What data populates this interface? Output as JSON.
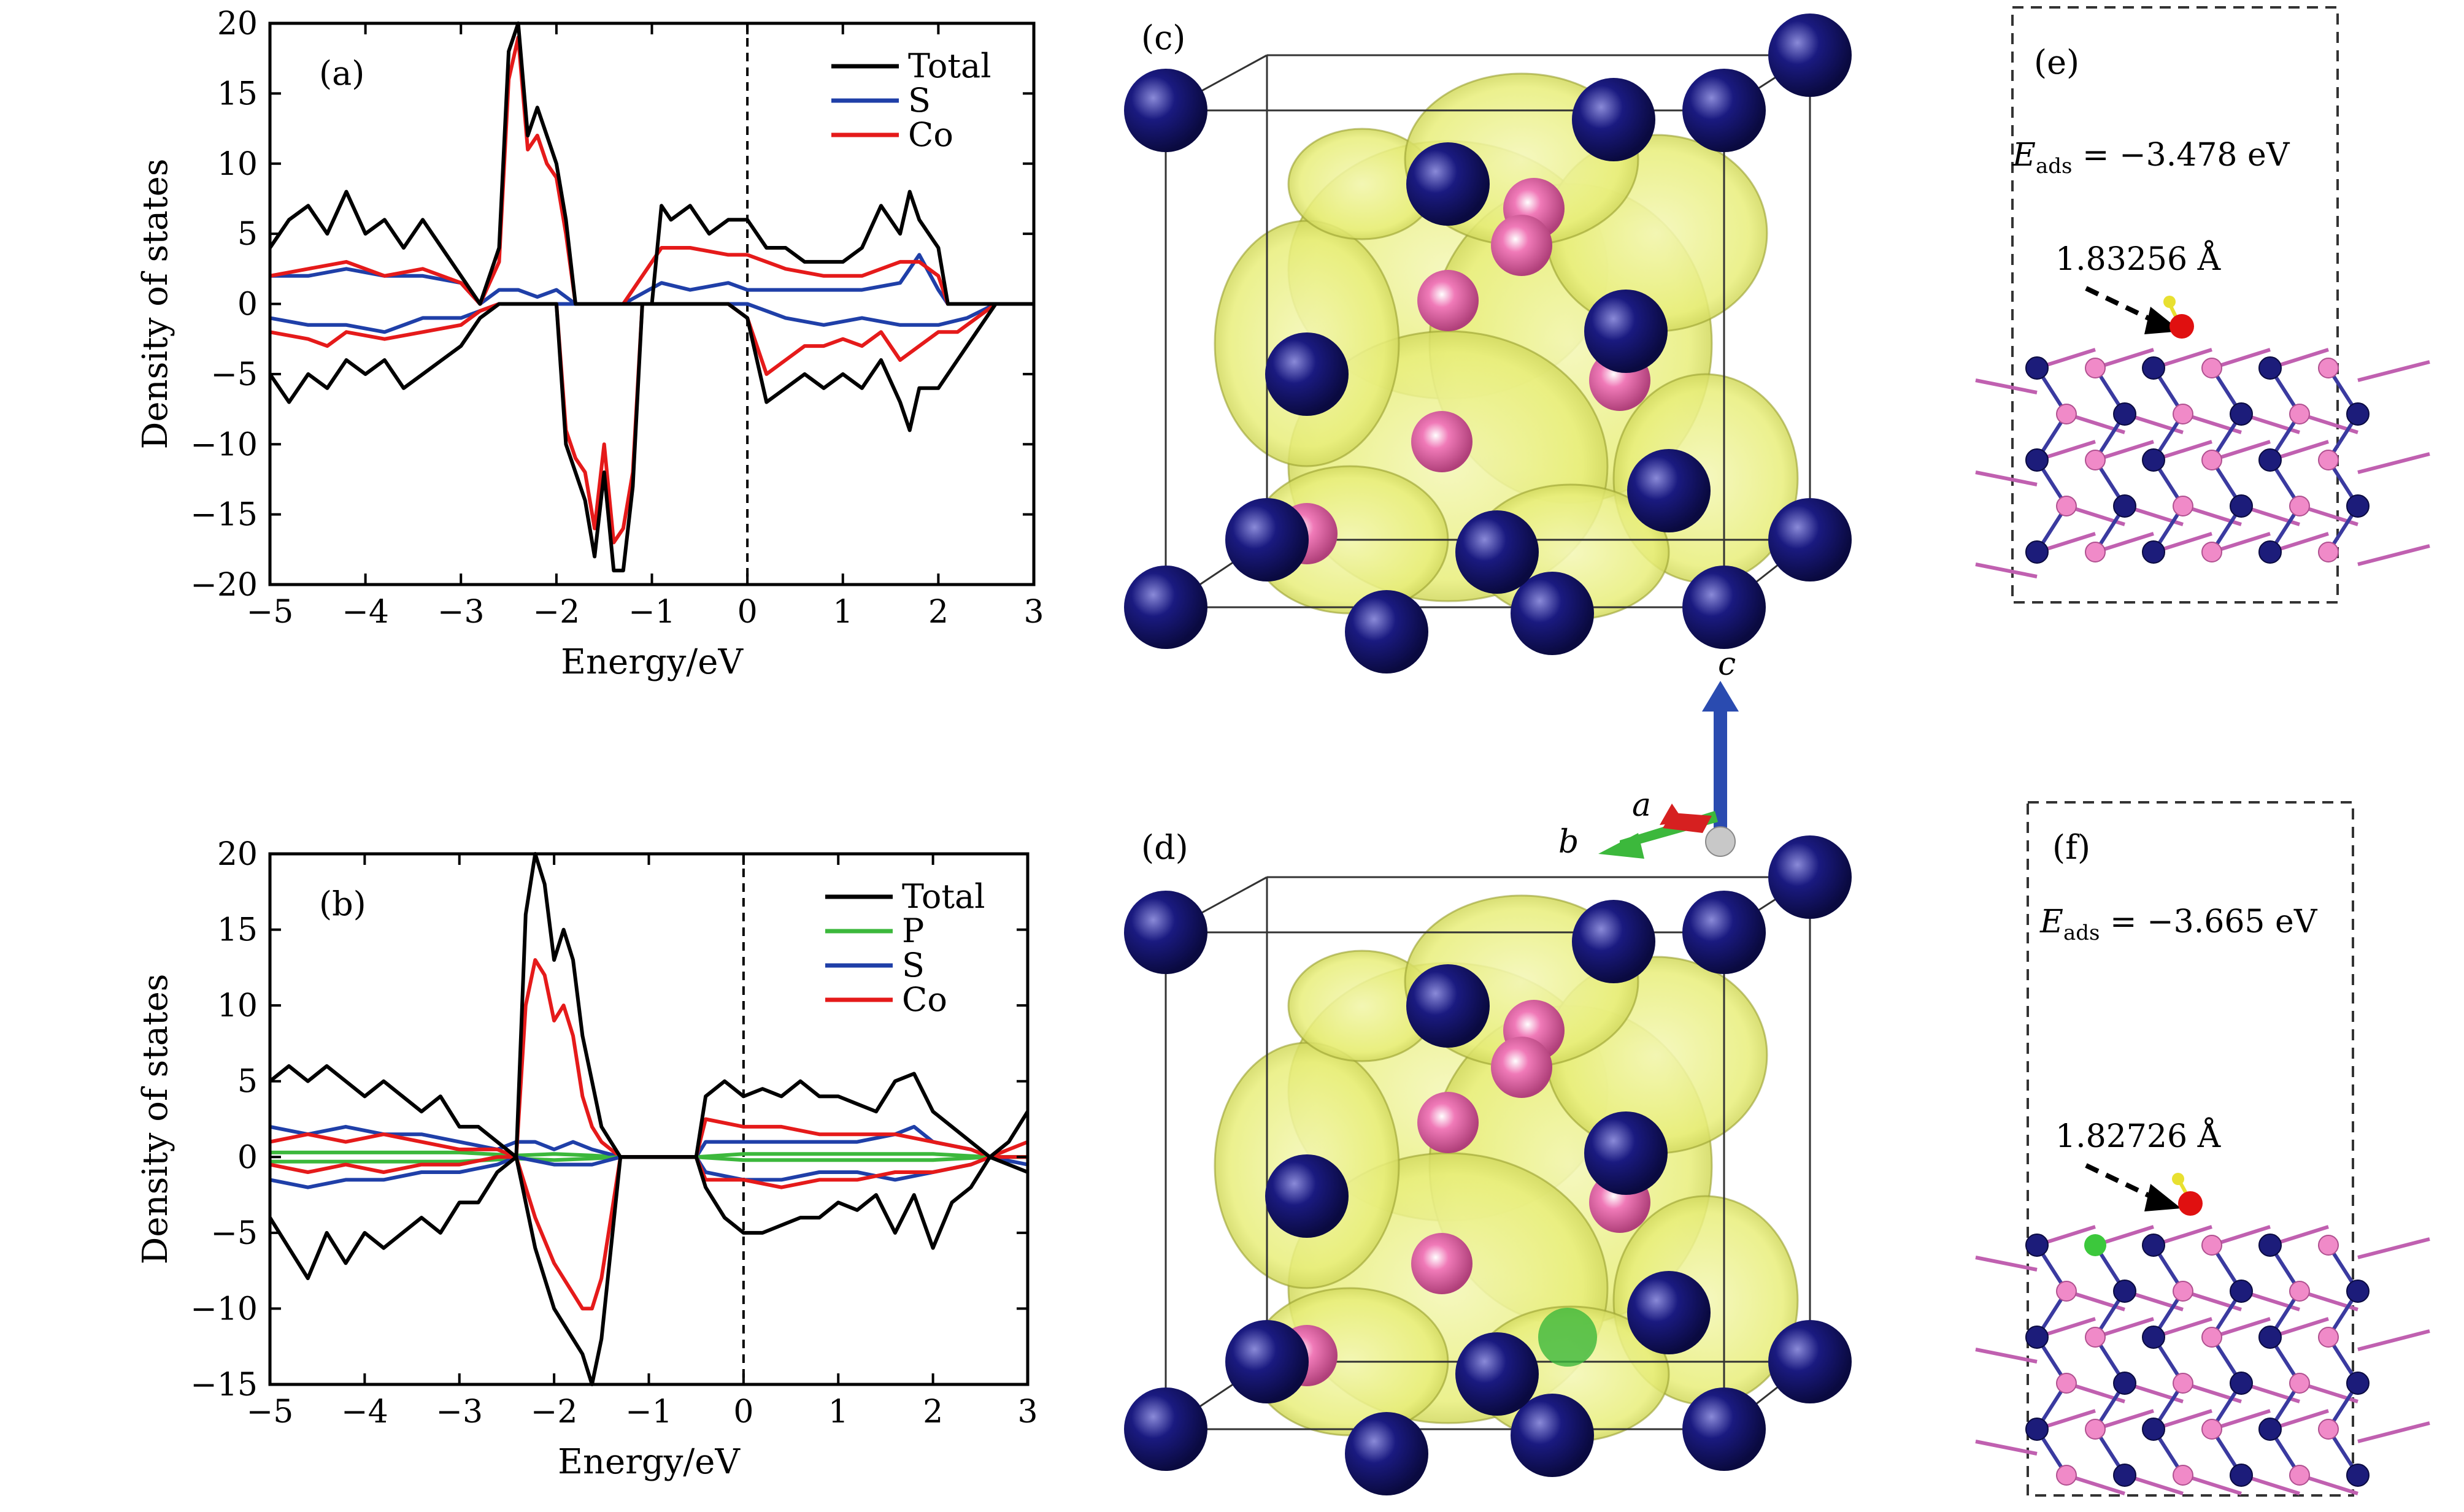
{
  "chart_data": [
    {
      "type": "line",
      "panel_label": "(a)",
      "xlabel": "Energy/eV",
      "ylabel": "Density of states",
      "xlim": [
        -5,
        3
      ],
      "ylim": [
        -20,
        20
      ],
      "xticks": [
        -5,
        -4,
        -3,
        -2,
        -1,
        0,
        1,
        2,
        3
      ],
      "yticks": [
        -20,
        -15,
        -10,
        -5,
        0,
        5,
        10,
        15,
        20
      ],
      "fermi_level": 0,
      "legend": [
        "Total",
        "S",
        "Co"
      ],
      "legend_position": "top-right",
      "colors": {
        "Total": "#000000",
        "S": "#1f3fa8",
        "Co": "#e51a1a"
      },
      "series": [
        {
          "name": "Total",
          "spin": "up",
          "x": [
            -5,
            -4.8,
            -4.6,
            -4.4,
            -4.2,
            -4,
            -3.8,
            -3.6,
            -3.4,
            -3.2,
            -3,
            -2.8,
            -2.6,
            -2.5,
            -2.4,
            -2.3,
            -2.2,
            -2.1,
            -2,
            -1.9,
            -1.8,
            -1.3,
            -1.2,
            -1.1,
            -1,
            -0.9,
            -0.8,
            -0.6,
            -0.4,
            -0.2,
            0,
            0.2,
            0.4,
            0.6,
            0.8,
            1,
            1.2,
            1.4,
            1.6,
            1.7,
            1.8,
            2,
            2.1,
            2.4,
            3
          ],
          "y": [
            4,
            6,
            7,
            5,
            8,
            5,
            6,
            4,
            6,
            4,
            2,
            0,
            4,
            18,
            20,
            12,
            14,
            12,
            10,
            6,
            0,
            0,
            0,
            0,
            0,
            7,
            6,
            7,
            5,
            6,
            6,
            4,
            4,
            3,
            3,
            3,
            4,
            7,
            5,
            8,
            6,
            4,
            0,
            0,
            0
          ]
        },
        {
          "name": "S",
          "spin": "up",
          "x": [
            -5,
            -4.6,
            -4.2,
            -3.8,
            -3.4,
            -3,
            -2.8,
            -2.6,
            -2.4,
            -2.2,
            -2,
            -1.8,
            -1.3,
            -0.9,
            -0.6,
            -0.2,
            0,
            0.4,
            0.8,
            1.2,
            1.6,
            1.8,
            2,
            2.1,
            3
          ],
          "y": [
            2,
            2,
            2.5,
            2,
            2,
            1.5,
            0,
            1,
            1,
            0.5,
            1,
            0,
            0,
            1.5,
            1,
            1.5,
            1,
            1,
            1,
            1,
            1.5,
            3.5,
            1,
            0,
            0
          ]
        },
        {
          "name": "Co",
          "spin": "up",
          "x": [
            -5,
            -4.6,
            -4.2,
            -3.8,
            -3.4,
            -3,
            -2.8,
            -2.6,
            -2.5,
            -2.4,
            -2.3,
            -2.2,
            -2.1,
            -2,
            -1.9,
            -1.8,
            -1.3,
            -0.9,
            -0.6,
            -0.2,
            0,
            0.4,
            0.8,
            1.2,
            1.6,
            1.8,
            2,
            2.1,
            3
          ],
          "y": [
            2,
            2.5,
            3,
            2,
            2.5,
            1.5,
            0,
            3,
            16,
            19,
            11,
            12,
            10,
            9,
            5,
            0,
            0,
            4,
            4,
            3.5,
            3.5,
            2.5,
            2,
            2,
            3,
            3,
            2,
            0,
            0
          ]
        },
        {
          "name": "Total",
          "spin": "down",
          "x": [
            -5,
            -4.8,
            -4.6,
            -4.4,
            -4.2,
            -4,
            -3.8,
            -3.6,
            -3.4,
            -3.2,
            -3,
            -2.8,
            -2.6,
            -2,
            -1.9,
            -1.8,
            -1.7,
            -1.6,
            -1.5,
            -1.4,
            -1.3,
            -1.2,
            -1.1,
            -0.2,
            0,
            0.2,
            0.4,
            0.6,
            0.8,
            1,
            1.2,
            1.4,
            1.6,
            1.7,
            1.8,
            2,
            2.2,
            2.4,
            2.6,
            3
          ],
          "y": [
            -5,
            -7,
            -5,
            -6,
            -4,
            -5,
            -4,
            -6,
            -5,
            -4,
            -3,
            -1,
            0,
            0,
            -10,
            -12,
            -14,
            -18,
            -12,
            -19,
            -19,
            -13,
            0,
            0,
            -1,
            -7,
            -6,
            -5,
            -6,
            -5,
            -6,
            -4,
            -7,
            -9,
            -6,
            -6,
            -4,
            -2,
            0,
            0
          ]
        },
        {
          "name": "S",
          "spin": "down",
          "x": [
            -5,
            -4.6,
            -4.2,
            -3.8,
            -3.4,
            -3,
            -2.8,
            -2.6,
            -0.2,
            0,
            0.4,
            0.8,
            1.2,
            1.6,
            2,
            2.3,
            2.6,
            3
          ],
          "y": [
            -1,
            -1.5,
            -1.5,
            -2,
            -1,
            -1,
            -0.5,
            0,
            0,
            0,
            -1,
            -1.5,
            -1,
            -1.5,
            -1.5,
            -1,
            0,
            0
          ]
        },
        {
          "name": "Co",
          "spin": "down",
          "x": [
            -5,
            -4.6,
            -4.4,
            -4.2,
            -3.8,
            -3.4,
            -3,
            -2.8,
            -2.6,
            -2,
            -1.9,
            -1.8,
            -1.7,
            -1.6,
            -1.5,
            -1.4,
            -1.3,
            -1.2,
            -1.1,
            -0.2,
            0,
            0.2,
            0.4,
            0.6,
            0.8,
            1,
            1.2,
            1.4,
            1.6,
            1.8,
            2,
            2.2,
            2.6,
            3
          ],
          "y": [
            -2,
            -2.5,
            -3,
            -2,
            -2.5,
            -2,
            -1.5,
            -0.5,
            0,
            0,
            -9,
            -11,
            -12,
            -16,
            -10,
            -17,
            -16,
            -12,
            0,
            0,
            -1,
            -5,
            -4,
            -3,
            -3,
            -2.5,
            -3,
            -2,
            -4,
            -3,
            -2,
            -2,
            0,
            0
          ]
        }
      ]
    },
    {
      "type": "line",
      "panel_label": "(b)",
      "xlabel": "Energy/eV",
      "ylabel": "Density of states",
      "xlim": [
        -5,
        3
      ],
      "ylim": [
        -15,
        20
      ],
      "xticks": [
        -5,
        -4,
        -3,
        -2,
        -1,
        0,
        1,
        2,
        3
      ],
      "yticks": [
        -15,
        -10,
        -5,
        0,
        5,
        10,
        15,
        20
      ],
      "fermi_level": 0,
      "legend": [
        "Total",
        "P",
        "S",
        "Co"
      ],
      "legend_position": "top-right",
      "colors": {
        "Total": "#000000",
        "P": "#3cb83c",
        "S": "#1f3fa8",
        "Co": "#e51a1a"
      },
      "series": [
        {
          "name": "Total",
          "spin": "up",
          "x": [
            -5,
            -4.8,
            -4.6,
            -4.4,
            -4.2,
            -4,
            -3.8,
            -3.6,
            -3.4,
            -3.2,
            -3,
            -2.8,
            -2.6,
            -2.4,
            -2.3,
            -2.2,
            -2.1,
            -2,
            -1.9,
            -1.8,
            -1.7,
            -1.6,
            -1.5,
            -1.3,
            -0.5,
            -0.4,
            -0.2,
            0,
            0.2,
            0.4,
            0.6,
            0.8,
            1,
            1.2,
            1.4,
            1.6,
            1.8,
            2,
            2.2,
            2.4,
            2.6,
            2.8,
            3
          ],
          "y": [
            5,
            6,
            5,
            6,
            5,
            4,
            5,
            4,
            3,
            4,
            2,
            2,
            1,
            0,
            16,
            20,
            18,
            13,
            15,
            13,
            8,
            5,
            2,
            0,
            0,
            4,
            5,
            4,
            4.5,
            4,
            5,
            4,
            4,
            3.5,
            3,
            5,
            5.5,
            3,
            2,
            1,
            0,
            1,
            3
          ]
        },
        {
          "name": "P",
          "spin": "up",
          "x": [
            -5,
            -4,
            -3,
            -2.4,
            -2,
            -1.6,
            -1.3,
            -0.5,
            0,
            1,
            2,
            2.6,
            3
          ],
          "y": [
            0.3,
            0.3,
            0.3,
            0.1,
            0.2,
            0.1,
            0,
            0,
            0.2,
            0.2,
            0.2,
            0,
            0
          ]
        },
        {
          "name": "S",
          "spin": "up",
          "x": [
            -5,
            -4.6,
            -4.2,
            -3.8,
            -3.4,
            -3,
            -2.6,
            -2.4,
            -2.2,
            -2,
            -1.8,
            -1.6,
            -1.3,
            -0.5,
            -0.4,
            0,
            0.4,
            0.8,
            1.2,
            1.6,
            1.8,
            2,
            2.4,
            2.6,
            3
          ],
          "y": [
            2,
            1.5,
            2,
            1.5,
            1.5,
            1,
            0.5,
            1,
            1,
            0.5,
            1,
            0.5,
            0,
            0,
            1,
            1,
            1,
            1,
            1,
            1.5,
            2,
            1,
            0.5,
            0,
            0
          ]
        },
        {
          "name": "Co",
          "spin": "up",
          "x": [
            -5,
            -4.6,
            -4.2,
            -3.8,
            -3.4,
            -3,
            -2.6,
            -2.4,
            -2.3,
            -2.2,
            -2.1,
            -2,
            -1.9,
            -1.8,
            -1.7,
            -1.6,
            -1.5,
            -1.3,
            -0.5,
            -0.4,
            0,
            0.4,
            0.8,
            1.2,
            1.6,
            2,
            2.4,
            2.6,
            3
          ],
          "y": [
            1,
            1.5,
            1,
            1.5,
            1,
            0.5,
            0.5,
            0,
            10,
            13,
            12,
            9,
            10,
            8,
            4,
            2,
            1,
            0,
            0,
            2.5,
            2,
            2,
            1.5,
            1.5,
            1.5,
            1,
            0.5,
            0,
            1
          ]
        },
        {
          "name": "Total",
          "spin": "down",
          "x": [
            -5,
            -4.8,
            -4.6,
            -4.4,
            -4.2,
            -4,
            -3.8,
            -3.6,
            -3.4,
            -3.2,
            -3,
            -2.8,
            -2.6,
            -2.4,
            -2.2,
            -2,
            -1.8,
            -1.7,
            -1.6,
            -1.5,
            -1.4,
            -1.3,
            -0.5,
            -0.4,
            -0.2,
            0,
            0.2,
            0.4,
            0.6,
            0.8,
            1,
            1.2,
            1.4,
            1.6,
            1.8,
            2,
            2.2,
            2.4,
            2.6,
            3
          ],
          "y": [
            -4,
            -6,
            -8,
            -5,
            -7,
            -5,
            -6,
            -5,
            -4,
            -5,
            -3,
            -3,
            -1,
            0,
            -6,
            -10,
            -12,
            -13,
            -15,
            -12,
            -6,
            0,
            0,
            -2,
            -4,
            -5,
            -5,
            -4.5,
            -4,
            -4,
            -3,
            -3.5,
            -2.5,
            -5,
            -2.5,
            -6,
            -3,
            -2,
            0,
            -1
          ]
        },
        {
          "name": "P",
          "spin": "down",
          "x": [
            -5,
            -4,
            -3,
            -2.4,
            -2,
            -1.6,
            -1.3,
            -0.5,
            0,
            1,
            2,
            2.6,
            3
          ],
          "y": [
            -0.3,
            -0.3,
            -0.3,
            -0.1,
            -0.2,
            -0.1,
            0,
            0,
            -0.2,
            -0.2,
            -0.2,
            0,
            0
          ]
        },
        {
          "name": "S",
          "spin": "down",
          "x": [
            -5,
            -4.6,
            -4.2,
            -3.8,
            -3.4,
            -3,
            -2.6,
            -2.4,
            -2,
            -1.6,
            -1.3,
            -0.5,
            -0.4,
            0,
            0.4,
            0.8,
            1.2,
            1.6,
            2,
            2.4,
            2.6,
            3
          ],
          "y": [
            -1.5,
            -2,
            -1.5,
            -1.5,
            -1,
            -1,
            -0.5,
            0,
            -0.5,
            -0.5,
            0,
            0,
            -1,
            -1.5,
            -1.5,
            -1,
            -1,
            -1.5,
            -1,
            -0.5,
            0,
            -0.5
          ]
        },
        {
          "name": "Co",
          "spin": "down",
          "x": [
            -5,
            -4.6,
            -4.2,
            -3.8,
            -3.4,
            -3,
            -2.6,
            -2.4,
            -2.2,
            -2,
            -1.8,
            -1.7,
            -1.6,
            -1.5,
            -1.4,
            -1.3,
            -0.5,
            -0.4,
            0,
            0.4,
            0.8,
            1.2,
            1.6,
            2,
            2.4,
            2.6,
            3
          ],
          "y": [
            -0.5,
            -1,
            -0.5,
            -1,
            -0.5,
            -0.5,
            0,
            0,
            -4,
            -7,
            -9,
            -10,
            -10,
            -8,
            -4,
            0,
            0,
            -1.5,
            -1.5,
            -2,
            -1.5,
            -1.5,
            -1,
            -1,
            -0.5,
            0,
            0
          ]
        }
      ]
    }
  ],
  "structures": {
    "panel_c_label": "(c)",
    "panel_d_label": "(d)",
    "colors": {
      "co_atom": "#1a1a80",
      "s_atom": "#f07ab8",
      "p_atom": "#3cb83c",
      "isosurface": "#e8ee7a",
      "cell_edge": "#333333"
    }
  },
  "axes_triad": {
    "a_label": "a",
    "b_label": "b",
    "c_label": "c",
    "colors": {
      "a": "#d62020",
      "b": "#3cb83c",
      "c": "#2a4bb0"
    }
  },
  "adsorption": {
    "e": {
      "panel_label": "(e)",
      "eads_symbol": "E",
      "eads_subscript": "ads",
      "eads_value": " = −3.478 eV",
      "bond_length": "1.83256 Å"
    },
    "f": {
      "panel_label": "(f)",
      "eads_symbol": "E",
      "eads_subscript": "ads",
      "eads_value": " = −3.665 eV",
      "bond_length": "1.82726 Å"
    }
  }
}
